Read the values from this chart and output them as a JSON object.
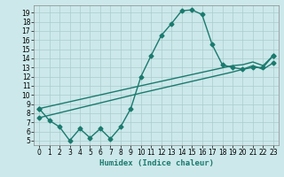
{
  "bg_color": "#cce8ea",
  "grid_color": "#aacccc",
  "line_color": "#1a7a6e",
  "xlabel": "Humidex (Indice chaleur)",
  "ylim": [
    4.5,
    19.8
  ],
  "xlim": [
    -0.5,
    23.5
  ],
  "yticks": [
    5,
    6,
    7,
    8,
    9,
    10,
    11,
    12,
    13,
    14,
    15,
    16,
    17,
    18,
    19
  ],
  "xticks": [
    0,
    1,
    2,
    3,
    4,
    5,
    6,
    7,
    8,
    9,
    10,
    11,
    12,
    13,
    14,
    15,
    16,
    17,
    18,
    19,
    20,
    21,
    22,
    23
  ],
  "series1_x": [
    0,
    1,
    2,
    3,
    4,
    5,
    6,
    7,
    8,
    9,
    10,
    11,
    12,
    13,
    14,
    15,
    16,
    17,
    18,
    19,
    20,
    21,
    22,
    23
  ],
  "series1_y": [
    8.5,
    7.2,
    6.5,
    5.0,
    6.3,
    5.3,
    6.3,
    5.2,
    6.5,
    8.5,
    12.0,
    14.3,
    16.5,
    17.8,
    19.2,
    19.3,
    18.8,
    15.5,
    13.3,
    13.0,
    12.8,
    13.0,
    13.0,
    14.3
  ],
  "series2_x": [
    0,
    10,
    19,
    20,
    21,
    22,
    23
  ],
  "series2_y": [
    8.5,
    11.0,
    13.2,
    13.3,
    13.6,
    13.2,
    14.3
  ],
  "series3_x": [
    0,
    10,
    19,
    20,
    21,
    22,
    23
  ],
  "series3_y": [
    7.5,
    10.2,
    12.5,
    12.8,
    13.2,
    12.8,
    13.5
  ],
  "marker": "D",
  "markersize": 2.5,
  "linewidth": 1.0,
  "tick_fontsize": 5.5,
  "xlabel_fontsize": 6.5
}
